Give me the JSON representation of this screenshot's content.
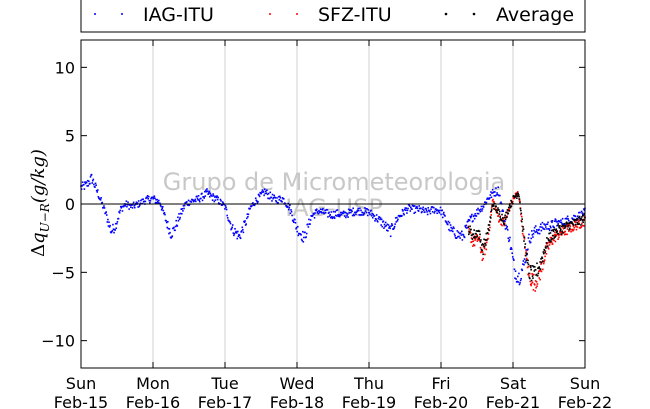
{
  "chart_data": {
    "type": "scatter",
    "title": "",
    "ylabel": "Δq_{U−R}(g/kg)",
    "ylabel_parts": {
      "delta": "Δ",
      "q": "q",
      "sub": "U−R",
      "unit": "(g/kg)"
    },
    "watermark": [
      "Grupo de Micrometeorologia",
      "IAG-USP"
    ],
    "xlim": [
      0,
      7
    ],
    "ylim": [
      -12,
      12
    ],
    "grid": "vertical",
    "legend_placement": "top",
    "x_ticks": [
      {
        "x": 0,
        "line1": "Sun",
        "line2": "Feb-15"
      },
      {
        "x": 1,
        "line1": "Mon",
        "line2": "Feb-16"
      },
      {
        "x": 2,
        "line1": "Tue",
        "line2": "Feb-17"
      },
      {
        "x": 3,
        "line1": "Wed",
        "line2": "Feb-18"
      },
      {
        "x": 4,
        "line1": "Thu",
        "line2": "Feb-19"
      },
      {
        "x": 5,
        "line1": "Fri",
        "line2": "Feb-20"
      },
      {
        "x": 6,
        "line1": "Sat",
        "line2": "Feb-21"
      },
      {
        "x": 7,
        "line1": "Sun",
        "line2": "Feb-22"
      }
    ],
    "y_ticks": [
      10,
      5,
      0,
      -5,
      -10
    ],
    "y_tick_labels": [
      "10",
      "5",
      "0",
      "−5",
      "−10"
    ],
    "series": [
      {
        "name": "IAG-ITU",
        "color": "#0000ff",
        "x_range": [
          0,
          7
        ],
        "x": [
          0,
          0.08,
          0.15,
          0.22,
          0.28,
          0.35,
          0.42,
          0.48,
          0.55,
          0.62,
          0.7,
          0.8,
          0.9,
          1.0,
          1.1,
          1.2,
          1.25,
          1.3,
          1.38,
          1.45,
          1.52,
          1.6,
          1.68,
          1.75,
          1.8,
          1.9,
          2.0,
          2.1,
          2.2,
          2.3,
          2.35,
          2.42,
          2.48,
          2.55,
          2.62,
          2.7,
          2.8,
          2.9,
          3.0,
          3.1,
          3.2,
          3.3,
          3.35,
          3.42,
          3.48,
          3.55,
          3.65,
          3.75,
          3.85,
          4.0,
          4.15,
          4.3,
          4.4,
          4.5,
          4.55,
          4.62,
          4.7,
          4.8,
          4.9,
          5.0,
          5.15,
          5.3,
          5.4,
          5.5,
          5.58,
          5.65,
          5.72,
          5.8,
          5.88,
          5.95,
          6.02,
          6.08,
          6.15,
          6.22,
          6.3,
          6.38,
          6.45,
          6.52,
          6.6,
          6.68,
          6.75,
          6.85,
          6.95,
          7.0
        ],
        "y": [
          1.2,
          1.4,
          1.9,
          1.0,
          0.2,
          -0.8,
          -2.0,
          -1.6,
          -0.4,
          0.0,
          -0.2,
          0.0,
          0.3,
          0.4,
          0.1,
          -1.5,
          -2.2,
          -1.8,
          -0.8,
          0.0,
          0.2,
          0.3,
          0.5,
          0.8,
          0.6,
          0.3,
          -0.2,
          -1.8,
          -2.4,
          -1.2,
          -0.3,
          0.2,
          0.5,
          0.9,
          0.6,
          0.3,
          0.4,
          -0.3,
          -1.8,
          -2.5,
          -0.9,
          -0.5,
          -0.6,
          -0.7,
          -0.8,
          -0.7,
          -0.8,
          -0.6,
          -0.5,
          -0.6,
          -1.2,
          -2.0,
          -1.0,
          -0.5,
          -0.3,
          -0.4,
          -0.4,
          -0.6,
          -0.4,
          -0.5,
          -2.0,
          -2.4,
          -1.2,
          -0.6,
          -0.2,
          0.4,
          0.8,
          1.0,
          -1.2,
          -2.5,
          -4.8,
          -5.4,
          -4.5,
          -2.6,
          -2.0,
          -1.8,
          -1.6,
          -1.6,
          -1.4,
          -1.4,
          -1.2,
          -1.0,
          -0.8,
          -0.6
        ]
      },
      {
        "name": "SFZ-ITU",
        "color": "#ff0000",
        "x_range": [
          5.38,
          7
        ],
        "x": [
          5.38,
          5.45,
          5.52,
          5.58,
          5.65,
          5.72,
          5.8,
          5.88,
          5.95,
          6.02,
          6.08,
          6.15,
          6.22,
          6.3,
          6.38,
          6.45,
          6.52,
          6.6,
          6.68,
          6.75,
          6.85,
          6.95,
          7.0
        ],
        "y": [
          -2.0,
          -2.8,
          -2.5,
          -3.8,
          -2.6,
          0.3,
          -1.0,
          -1.4,
          -0.3,
          0.5,
          0.8,
          -2.6,
          -5.2,
          -5.8,
          -5.0,
          -3.6,
          -2.8,
          -2.3,
          -2.1,
          -1.9,
          -1.6,
          -1.4,
          -1.2
        ]
      },
      {
        "name": "Average",
        "color": "#000000",
        "x_range": [
          5.38,
          7
        ],
        "x": [
          5.38,
          5.45,
          5.52,
          5.58,
          5.65,
          5.72,
          5.8,
          5.88,
          5.95,
          6.02,
          6.08,
          6.15,
          6.22,
          6.3,
          6.38,
          6.45,
          6.52,
          6.6,
          6.68,
          6.75,
          6.85,
          6.95,
          7.0
        ],
        "y": [
          -1.8,
          -2.3,
          -2.0,
          -3.3,
          -2.2,
          0.0,
          -0.6,
          -1.2,
          -0.2,
          0.5,
          0.9,
          -2.4,
          -5.0,
          -5.2,
          -4.4,
          -3.1,
          -2.4,
          -2.0,
          -1.8,
          -1.6,
          -1.4,
          -1.2,
          -0.9
        ]
      }
    ]
  }
}
